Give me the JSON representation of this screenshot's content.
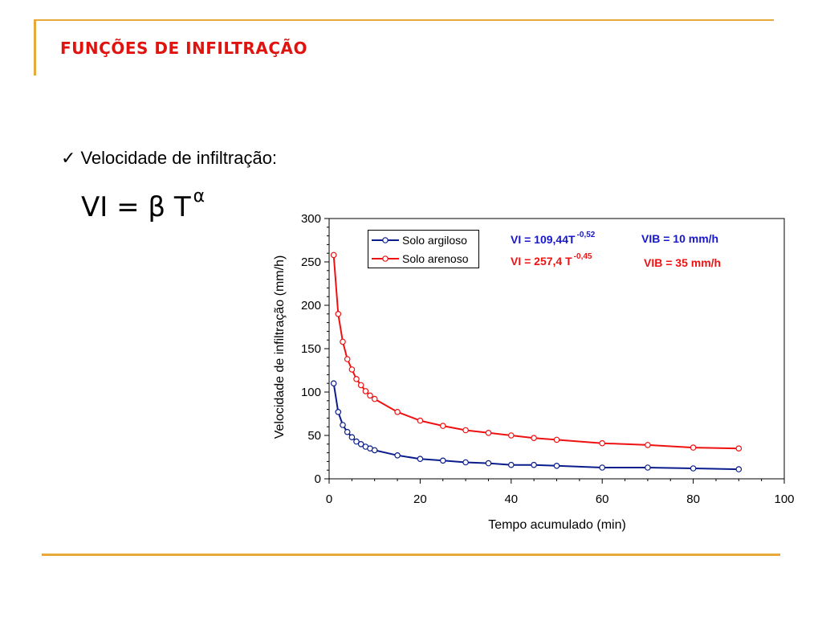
{
  "slide": {
    "title": "FUNÇÕES DE INFILTRAÇÃO",
    "bullet": "Velocidade de infiltração:",
    "formula_base": "VI = β T",
    "formula_exp": "α"
  },
  "colors": {
    "accent": "#e6a93a",
    "title": "#e0140f",
    "argiloso": "#0a1d8c",
    "arenoso": "#ee1111"
  },
  "annotations": {
    "eq1_base": "VI = 109,44T",
    "eq1_exp": "-0,52",
    "eq2_base": "VI = 257,4 T",
    "eq2_exp": "-0,45",
    "vib1": "VIB = 10 mm/h",
    "vib2": "VIB = 35 mm/h"
  },
  "chart_data": {
    "type": "line",
    "xlabel": "Tempo acumulado (min)",
    "ylabel": "Velocidade de infiltração (mm/h)",
    "xlim": [
      0,
      100
    ],
    "ylim": [
      0,
      300
    ],
    "xticks": [
      "0",
      "20",
      "40",
      "60",
      "80",
      "100"
    ],
    "yticks": [
      "0",
      "50",
      "100",
      "150",
      "200",
      "250",
      "300"
    ],
    "grid": false,
    "legend_position": "top-left",
    "series": [
      {
        "name": "Solo argiloso",
        "color": "#0a1d8c",
        "x": [
          1,
          2,
          3,
          4,
          5,
          6,
          7,
          8,
          9,
          10,
          15,
          20,
          25,
          30,
          35,
          40,
          45,
          50,
          60,
          70,
          80,
          90
        ],
        "y": [
          110,
          77,
          62,
          54,
          48,
          43,
          40,
          37,
          35,
          33,
          27,
          23,
          21,
          19,
          18,
          16,
          16,
          15,
          13,
          13,
          12,
          11
        ]
      },
      {
        "name": "Solo arenoso",
        "color": "#ee1111",
        "x": [
          1,
          2,
          3,
          4,
          5,
          6,
          7,
          8,
          9,
          10,
          15,
          20,
          25,
          30,
          35,
          40,
          45,
          50,
          60,
          70,
          80,
          90
        ],
        "y": [
          258,
          190,
          158,
          138,
          126,
          115,
          108,
          101,
          96,
          92,
          77,
          67,
          61,
          56,
          53,
          50,
          47,
          45,
          41,
          39,
          36,
          35
        ]
      }
    ]
  }
}
